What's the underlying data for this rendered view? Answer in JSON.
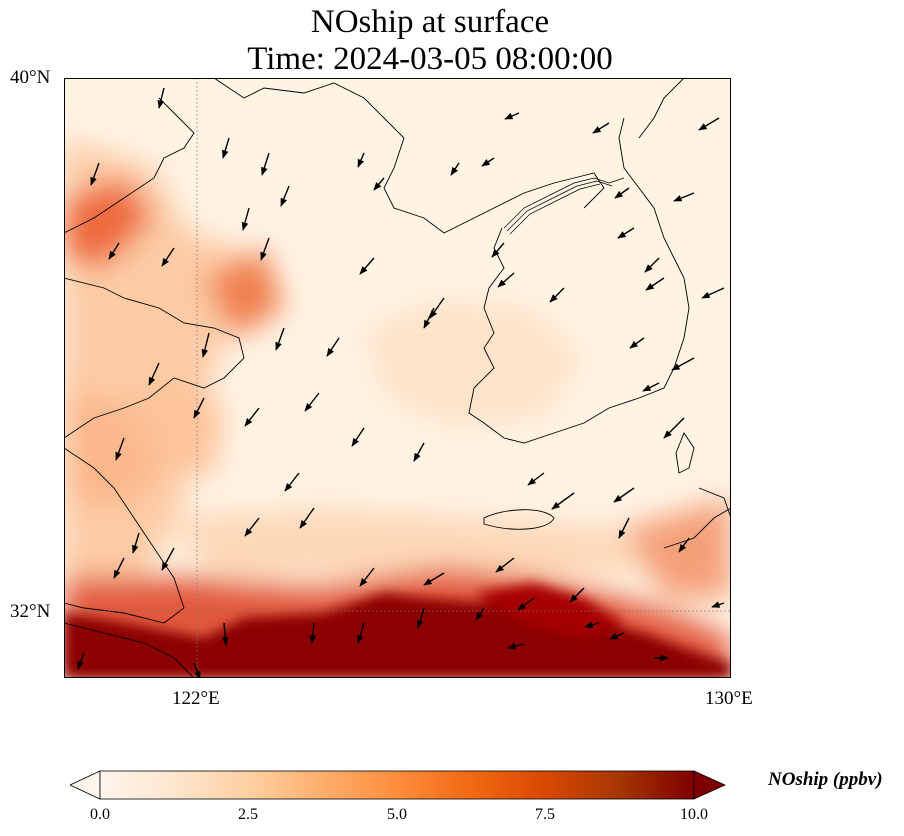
{
  "title_line1": "NOship at surface",
  "title_line2": "Time: 2024-03-05 08:00:00",
  "lat_ticks": [
    {
      "label": "40°N",
      "value": 40
    },
    {
      "label": "32°N",
      "value": 32
    }
  ],
  "lon_ticks": [
    {
      "label": "122°E",
      "value": 122
    },
    {
      "label": "130°E",
      "value": 130
    }
  ],
  "map_extent": {
    "lon_min": 120,
    "lon_max": 130,
    "lat_min": 31,
    "lat_max": 40
  },
  "colorbar": {
    "label": "NOship (ppbv)",
    "min": 0.0,
    "max": 10.0,
    "ticks": [
      "0.0",
      "2.5",
      "5.0",
      "7.5",
      "10.0"
    ],
    "colormap": [
      "#fff5eb",
      "#fee6ce",
      "#fdd0a2",
      "#fdae6b",
      "#fd8d3c",
      "#f16913",
      "#d94801",
      "#a63603",
      "#7f0000"
    ],
    "extend": "both"
  },
  "gridlines": {
    "lon": [
      122
    ],
    "lat": [
      32
    ],
    "style": "dotted"
  },
  "features": [
    "coastline",
    "national borders",
    "wind vectors"
  ]
}
